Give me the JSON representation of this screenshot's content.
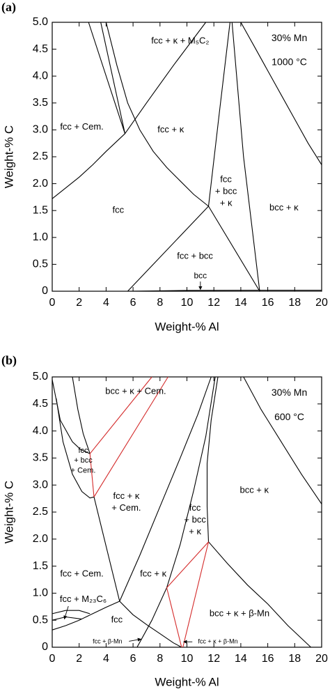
{
  "chart_data": [
    {
      "type": "phase-diagram",
      "panel_label": "(a)",
      "xlabel": "Weight-% Al",
      "ylabel": "Weight-% C",
      "xlim": [
        0,
        20
      ],
      "ylim": [
        0,
        5
      ],
      "xticks": [
        0,
        2,
        4,
        6,
        8,
        10,
        12,
        14,
        16,
        18,
        20
      ],
      "yticks": [
        0,
        0.5,
        {
          "value": 1,
          "label": "1.0"
        },
        1.5,
        {
          "value": 2,
          "label": "2.0"
        },
        2.5,
        {
          "value": 3,
          "label": "3.0"
        },
        3.5,
        {
          "value": 4,
          "label": "4.0"
        },
        4.5,
        {
          "value": 5,
          "label": "5.0"
        }
      ],
      "annotations": [
        "30% Mn",
        "1000 °C"
      ],
      "boundaries": [
        {
          "color": "#000000",
          "x": [
            0,
            1,
            2,
            3,
            4,
            5.4
          ],
          "y": [
            1.72,
            1.92,
            2.12,
            2.35,
            2.6,
            2.93
          ]
        },
        {
          "color": "#000000",
          "x": [
            5.4,
            7,
            9,
            11.4
          ],
          "y": [
            2.93,
            3.5,
            4.2,
            5
          ]
        },
        {
          "color": "#000000",
          "x": [
            2.7,
            5.4
          ],
          "y": [
            5,
            2.93
          ]
        },
        {
          "color": "#000000",
          "x": [
            3.6,
            5.4
          ],
          "y": [
            5,
            2.93
          ]
        },
        {
          "color": "#000000",
          "x": [
            4,
            4.8,
            5.6,
            6.5,
            7.5,
            8.5,
            9.5,
            10.5,
            11.6
          ],
          "y": [
            5,
            4.2,
            3.5,
            3,
            2.6,
            2.3,
            2.05,
            1.8,
            1.58
          ]
        },
        {
          "color": "#000000",
          "x": [
            5.6,
            11.6
          ],
          "y": [
            0,
            1.58
          ]
        },
        {
          "color": "#000000",
          "x": [
            11.6,
            15.4
          ],
          "y": [
            1.58,
            0
          ]
        },
        {
          "color": "#000000",
          "x": [
            11.6,
            12.4,
            13.2
          ],
          "y": [
            1.58,
            3.3,
            5
          ]
        },
        {
          "color": "#000000",
          "x": [
            13.35,
            14.2,
            15.4
          ],
          "y": [
            5,
            2.5,
            0
          ]
        },
        {
          "color": "#000000",
          "x": [
            14,
            15,
            16,
            17,
            18,
            19,
            20
          ],
          "y": [
            5,
            4.55,
            4.1,
            3.65,
            3.2,
            2.75,
            2.35
          ]
        },
        {
          "color": "#000000",
          "x": [
            5.6,
            10,
            15.4,
            20
          ],
          "y": [
            0,
            0.015,
            0.02,
            0.02
          ]
        }
      ],
      "regions": [
        {
          "lines": [
            "fcc + κ + M₅C₂"
          ]
        },
        {
          "lines": [
            "fcc + Cem."
          ]
        },
        {
          "lines": [
            "fcc + κ"
          ]
        },
        {
          "lines": [
            "fcc"
          ]
        },
        {
          "lines": [
            "fcc",
            "+ bcc",
            "+ κ"
          ]
        },
        {
          "lines": [
            "bcc + κ"
          ]
        },
        {
          "lines": [
            "fcc + bcc"
          ]
        },
        {
          "lines": [
            "bcc"
          ]
        }
      ]
    },
    {
      "type": "phase-diagram",
      "panel_label": "(b)",
      "xlabel": "Weight-% Al",
      "ylabel": "Weight-% C",
      "xlim": [
        0,
        20
      ],
      "ylim": [
        0,
        5
      ],
      "xticks": [
        0,
        2,
        4,
        6,
        8,
        10,
        12,
        14,
        16,
        18,
        20
      ],
      "yticks": [
        0,
        0.5,
        {
          "value": 1,
          "label": "1.0"
        },
        1.5,
        {
          "value": 2,
          "label": "2.0"
        },
        2.5,
        {
          "value": 3,
          "label": "3.0"
        },
        3.5,
        {
          "value": 4,
          "label": "4.0"
        },
        4.5,
        {
          "value": 5,
          "label": "5.0"
        }
      ],
      "annotations": [
        "30% Mn",
        "600 °C"
      ],
      "boundaries": [
        {
          "color": "#000000",
          "x": [
            0,
            0.6,
            1.5,
            2.1,
            2.8
          ],
          "y": [
            4.95,
            4.2,
            3.8,
            3.66,
            3.58
          ]
        },
        {
          "color": "#000000",
          "x": [
            1.5,
            1.9,
            2.3,
            2.8
          ],
          "y": [
            5,
            4.4,
            3.95,
            3.58
          ]
        },
        {
          "color": "#000000",
          "x": [
            0.3,
            0.8,
            1.5,
            2.2,
            2.8,
            3.1
          ],
          "y": [
            4.6,
            3.8,
            3.2,
            2.88,
            2.76,
            2.78
          ]
        },
        {
          "color": "#d42a2a",
          "x": [
            2.8,
            7.4
          ],
          "y": [
            3.58,
            5
          ]
        },
        {
          "color": "#d42a2a",
          "x": [
            3.1,
            8.6
          ],
          "y": [
            2.78,
            5
          ]
        },
        {
          "color": "#d42a2a",
          "x": [
            2.8,
            3.1
          ],
          "y": [
            3.58,
            2.78
          ]
        },
        {
          "color": "#000000",
          "x": [
            3.1,
            5
          ],
          "y": [
            2.78,
            0.85
          ]
        },
        {
          "color": "#000000",
          "x": [
            0,
            1,
            2,
            2.8
          ],
          "y": [
            0.62,
            0.68,
            0.68,
            0.62
          ]
        },
        {
          "color": "#000000",
          "x": [
            0,
            1,
            2.2
          ],
          "y": [
            0.5,
            0.56,
            0.52
          ]
        },
        {
          "color": "#000000",
          "x": [
            0,
            1,
            2,
            3,
            4,
            5
          ],
          "y": [
            0.32,
            0.4,
            0.5,
            0.62,
            0.74,
            0.85
          ]
        },
        {
          "color": "#000000",
          "x": [
            5,
            6,
            7,
            8,
            9,
            9.6
          ],
          "y": [
            0.85,
            0.6,
            0.42,
            0.25,
            0.08,
            0
          ]
        },
        {
          "color": "#000000",
          "x": [
            5,
            6.5,
            8,
            9.5,
            10.8,
            11.8
          ],
          "y": [
            0.85,
            1.7,
            2.6,
            3.5,
            4.3,
            5
          ]
        },
        {
          "color": "#000000",
          "x": [
            6.3,
            7.4,
            8.5,
            9.5,
            10.5,
            11.4,
            12.1
          ],
          "y": [
            0,
            0.5,
            1.1,
            1.9,
            2.9,
            3.9,
            5
          ]
        },
        {
          "color": "#000000",
          "x": [
            12.3,
            11.8,
            11.5,
            11.5,
            11.6
          ],
          "y": [
            5,
            4.2,
            3.4,
            2.6,
            1.95
          ]
        },
        {
          "color": "#000000",
          "x": [
            11.6,
            13,
            14.5,
            16,
            17.5,
            19.2
          ],
          "y": [
            1.95,
            1.55,
            1.15,
            0.8,
            0.4,
            0
          ]
        },
        {
          "color": "#000000",
          "x": [
            14.2,
            15.5,
            17,
            18.5,
            20
          ],
          "y": [
            5,
            4.4,
            3.8,
            3.2,
            2.65
          ]
        },
        {
          "color": "#d42a2a",
          "x": [
            8.5,
            9.6
          ],
          "y": [
            1.1,
            0
          ]
        },
        {
          "color": "#d42a2a",
          "x": [
            8.5,
            11.6
          ],
          "y": [
            1.1,
            1.95
          ]
        },
        {
          "color": "#d42a2a",
          "x": [
            11.6,
            9.7
          ],
          "y": [
            1.95,
            0
          ]
        }
      ],
      "regions": [
        {
          "lines": [
            "bcc + κ + Cem."
          ]
        },
        {
          "lines": [
            "fcc",
            "+ bcc",
            "+ Cem."
          ]
        },
        {
          "lines": [
            "fcc + κ",
            "+ Cem."
          ]
        },
        {
          "lines": [
            "fcc",
            "+ bcc",
            "+ κ"
          ]
        },
        {
          "lines": [
            "bcc + κ"
          ]
        },
        {
          "lines": [
            "fcc + κ"
          ]
        },
        {
          "lines": [
            "fcc + Cem."
          ]
        },
        {
          "lines": [
            "fcc + M₂₃C₆"
          ]
        },
        {
          "lines": [
            "fcc"
          ]
        },
        {
          "lines": [
            "bcc + κ + β-Mn"
          ]
        },
        {
          "lines": [
            "fcc + β-Mn"
          ]
        },
        {
          "lines": [
            "fcc + κ + β-Mn"
          ]
        }
      ]
    }
  ]
}
